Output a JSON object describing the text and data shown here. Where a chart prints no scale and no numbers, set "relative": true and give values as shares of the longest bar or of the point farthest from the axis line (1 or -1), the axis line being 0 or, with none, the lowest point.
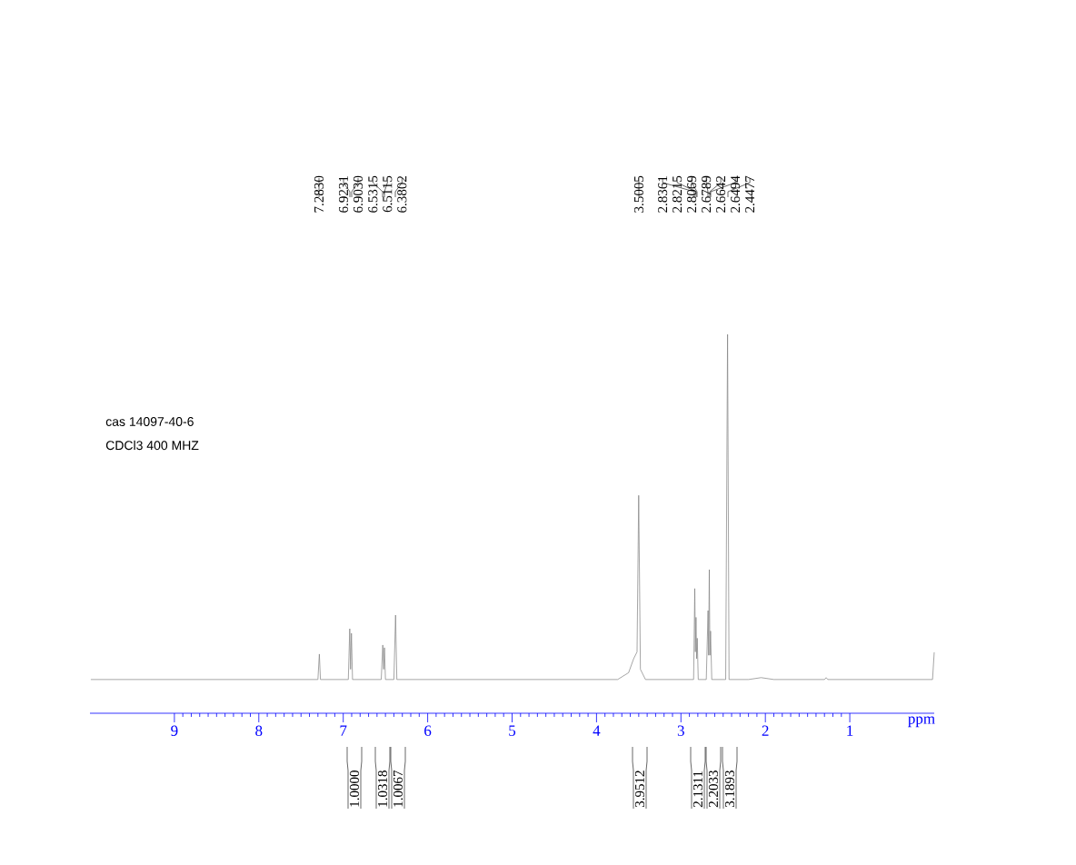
{
  "chart_data": {
    "type": "line",
    "relative": true,
    "color": "#808080",
    "xlim": [
      10,
      0
    ],
    "xticks": [
      9,
      8,
      7,
      6,
      5,
      4,
      3,
      2,
      1
    ],
    "xlabel": "ppm",
    "x": [
      9.99,
      7.3,
      7.283,
      7.27,
      6.94,
      6.923,
      6.913,
      6.903,
      6.89,
      6.55,
      6.5315,
      6.521,
      6.5115,
      6.5,
      6.4,
      6.3802,
      6.365,
      3.75,
      3.62,
      3.56,
      3.52,
      3.5005,
      3.48,
      3.42,
      2.85,
      2.8361,
      2.829,
      2.8215,
      2.814,
      2.8069,
      2.795,
      2.7,
      2.6789,
      2.672,
      2.6642,
      2.657,
      2.6494,
      2.635,
      2.47,
      2.4477,
      2.43,
      2.2,
      2.05,
      1.9,
      1.3,
      1.28,
      1.26,
      0.02,
      0.0
    ],
    "values": [
      0.089,
      0.089,
      0.156,
      0.089,
      0.089,
      0.223,
      0.116,
      0.211,
      0.089,
      0.089,
      0.18,
      0.116,
      0.173,
      0.089,
      0.089,
      0.259,
      0.089,
      0.089,
      0.107,
      0.144,
      0.162,
      0.575,
      0.116,
      0.089,
      0.089,
      0.329,
      0.162,
      0.253,
      0.144,
      0.198,
      0.089,
      0.089,
      0.271,
      0.153,
      0.379,
      0.153,
      0.217,
      0.089,
      0.089,
      1.0,
      0.089,
      0.089,
      0.094,
      0.089,
      0.089,
      0.094,
      0.089,
      0.089,
      0.161
    ],
    "annotations": [
      "cas 14097-40-6",
      "CDCl3 400 MHZ",
      "7.2830",
      "6.9231",
      "6.9030",
      "6.5315",
      "6.5115",
      "6.3802",
      "3.5005",
      "2.8361",
      "2.8215",
      "2.8069",
      "2.6789",
      "2.6642",
      "2.6494",
      "2.4477",
      "1.0000",
      "1.0318",
      "1.0067",
      "3.9512",
      "2.1311",
      "2.2033",
      "3.1893"
    ]
  }
}
